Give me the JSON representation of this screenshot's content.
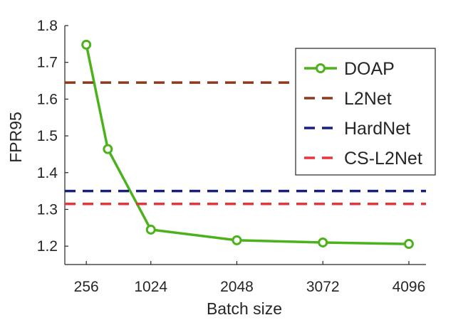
{
  "chart_data": {
    "type": "line",
    "title": "",
    "xlabel": "Batch size",
    "ylabel": "FPR95",
    "xlim": [
      0,
      4300
    ],
    "ylim": [
      1.15,
      1.8
    ],
    "xticks": [
      256,
      1024,
      2048,
      3072,
      4096
    ],
    "xtick_labels": [
      "256",
      "1024",
      "2048",
      "3072",
      "4096"
    ],
    "yticks": [
      1.2,
      1.3,
      1.4,
      1.5,
      1.6,
      1.7,
      1.8
    ],
    "ytick_labels": [
      "1.2",
      "1.3",
      "1.4",
      "1.5",
      "1.6",
      "1.7",
      "1.8"
    ],
    "grid": false,
    "legend_position": "top-right",
    "series": [
      {
        "name": "DOAP",
        "style": "solid-markers",
        "color": "#4cb21c",
        "x": [
          256,
          512,
          1024,
          2048,
          3072,
          4096
        ],
        "values": [
          1.748,
          1.464,
          1.245,
          1.216,
          1.21,
          1.206
        ]
      },
      {
        "name": "L2Net",
        "style": "dashed",
        "color": "#8b3a1e",
        "value": 1.645
      },
      {
        "name": "HardNet",
        "style": "dashed",
        "color": "#16207a",
        "value": 1.35
      },
      {
        "name": "CS-L2Net",
        "style": "dashed",
        "color": "#e8353a",
        "value": 1.315
      }
    ]
  }
}
